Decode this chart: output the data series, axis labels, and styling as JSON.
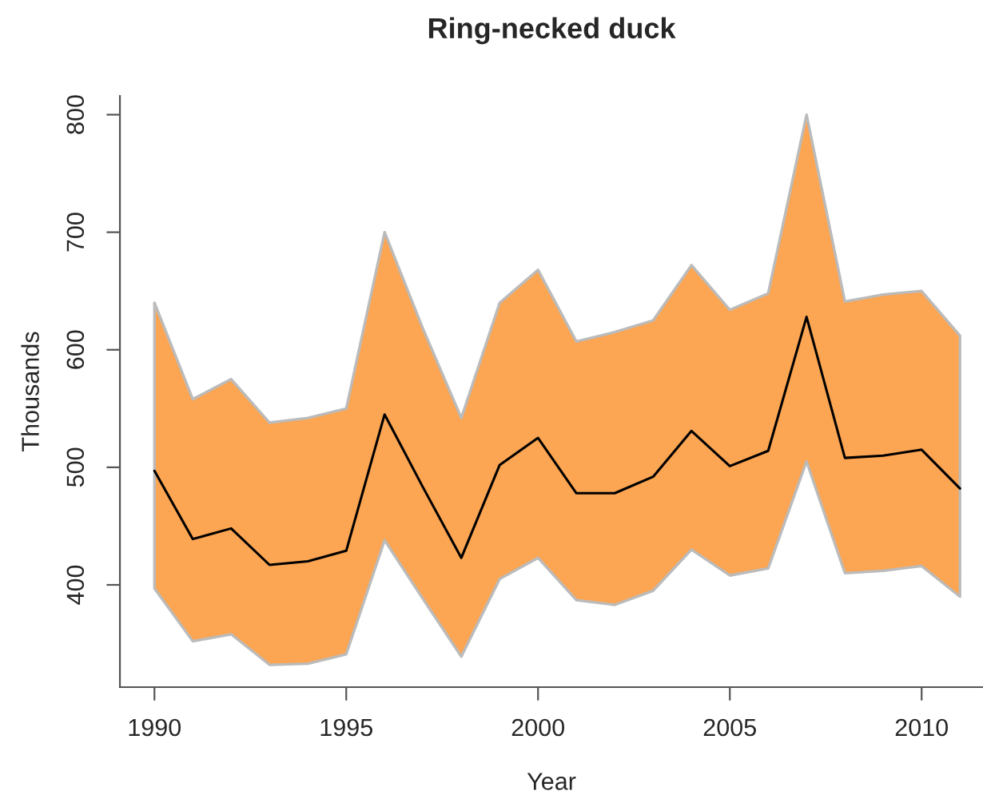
{
  "chart_data": {
    "type": "line",
    "title": "Ring-necked duck",
    "xlabel": "Year",
    "ylabel": "Thousands",
    "x": [
      1990,
      1991,
      1992,
      1993,
      1994,
      1995,
      1996,
      1997,
      1998,
      1999,
      2000,
      2001,
      2002,
      2003,
      2004,
      2005,
      2006,
      2007,
      2008,
      2009,
      2010,
      2011
    ],
    "series": [
      {
        "color": "#000000",
        "values": [
          497,
          439,
          448,
          417,
          420,
          429,
          545,
          483,
          423,
          502,
          525,
          478,
          478,
          492,
          531,
          501,
          514,
          628,
          508,
          510,
          515,
          482
        ],
        "upper": [
          640,
          558,
          575,
          538,
          542,
          550,
          700,
          618,
          542,
          640,
          668,
          607,
          615,
          625,
          672,
          634,
          648,
          800,
          641,
          647,
          650,
          612
        ],
        "lower": [
          397,
          352,
          358,
          332,
          333,
          341,
          438,
          388,
          339,
          405,
          423,
          387,
          383,
          395,
          430,
          408,
          414,
          505,
          410,
          412,
          416,
          390
        ]
      }
    ],
    "xlim": [
      1989.1,
      2011.6
    ],
    "ylim": [
      313,
      816
    ],
    "xticks": [
      1990,
      1995,
      2000,
      2005,
      2010
    ],
    "yticks": [
      400,
      500,
      600,
      700,
      800
    ],
    "grid": false,
    "legend": false,
    "marker": "none",
    "line_style": "solid"
  }
}
